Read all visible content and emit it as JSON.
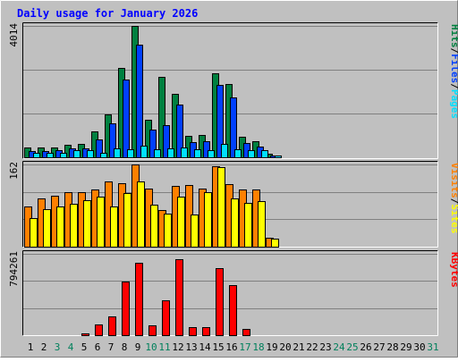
{
  "chart_data": {
    "type": "bar",
    "title": "Daily usage for January 2026",
    "days": [
      "1",
      "2",
      "3",
      "4",
      "5",
      "6",
      "7",
      "8",
      "9",
      "10",
      "11",
      "12",
      "13",
      "14",
      "15",
      "16",
      "17",
      "18",
      "19",
      "20",
      "21",
      "22",
      "23",
      "24",
      "25",
      "26",
      "27",
      "28",
      "29",
      "30",
      "31"
    ],
    "weekend_days": [
      "3",
      "4",
      "10",
      "11",
      "17",
      "18",
      "24",
      "25",
      "31"
    ],
    "panels": [
      {
        "name": "hits",
        "ymax_label": "4014",
        "ymax": 4014,
        "legend": [
          "Pages",
          "Files",
          "Hits"
        ],
        "series": [
          {
            "name": "Hits",
            "color": "#008040",
            "values": [
              300,
              290,
              300,
              390,
              410,
              780,
              1300,
              2730,
              4014,
              1150,
              2450,
              1930,
              650,
              690,
              2580,
              2230,
              640,
              480,
              110,
              0,
              0,
              0,
              0,
              0,
              0,
              0,
              0,
              0,
              0,
              0,
              0
            ]
          },
          {
            "name": "Files",
            "color": "#0040ff",
            "values": [
              200,
              200,
              210,
              270,
              280,
              540,
              1050,
              2370,
              3450,
              850,
              990,
              1620,
              460,
              480,
              2200,
              1840,
              440,
              330,
              60,
              0,
              0,
              0,
              0,
              0,
              0,
              0,
              0,
              0,
              0,
              0,
              0
            ]
          },
          {
            "name": "Pages",
            "color": "#00e0ff",
            "values": [
              150,
              150,
              150,
              220,
              220,
              150,
              280,
              250,
              350,
              250,
              280,
              300,
              240,
              220,
              400,
              240,
              230,
              210,
              40,
              0,
              0,
              0,
              0,
              0,
              0,
              0,
              0,
              0,
              0,
              0,
              0
            ]
          }
        ]
      },
      {
        "name": "visits",
        "ymax_label": "162",
        "ymax": 162,
        "legend": [
          "Sites",
          "Visits"
        ],
        "series": [
          {
            "name": "Visits",
            "color": "#ff8000",
            "values": [
              80,
              95,
              100,
              108,
              108,
              112,
              128,
              125,
              162,
              115,
              73,
              120,
              122,
              115,
              158,
              123,
              113,
              112,
              18,
              0,
              0,
              0,
              0,
              0,
              0,
              0,
              0,
              0,
              0,
              0,
              0
            ]
          },
          {
            "name": "Sites",
            "color": "#ffff00",
            "values": [
              56,
              74,
              80,
              85,
              92,
              98,
              80,
              105,
              128,
              83,
              65,
              98,
              63,
              107,
              157,
              95,
              87,
              90,
              15,
              0,
              0,
              0,
              0,
              0,
              0,
              0,
              0,
              0,
              0,
              0,
              0
            ]
          }
        ]
      },
      {
        "name": "kbytes",
        "ymax_label": "794261",
        "ymax": 794261,
        "legend": [
          "KBytes"
        ],
        "series": [
          {
            "name": "KBytes",
            "color": "#ff0000",
            "values": [
              0,
              0,
              0,
              0,
              21000,
              105000,
              182000,
              520000,
              708000,
              100000,
              344000,
              745000,
              81000,
              81000,
              657000,
              491000,
              60000,
              0,
              0,
              0,
              0,
              0,
              0,
              0,
              0,
              0,
              0,
              0,
              0,
              0,
              0
            ]
          }
        ]
      }
    ]
  },
  "colors": {
    "background": "#c0c0c0",
    "plot": "#c0c0c0",
    "title": "#0000ff",
    "weekday_label": "#000000",
    "weekend_label": "#00805c",
    "grid": "#808080"
  }
}
